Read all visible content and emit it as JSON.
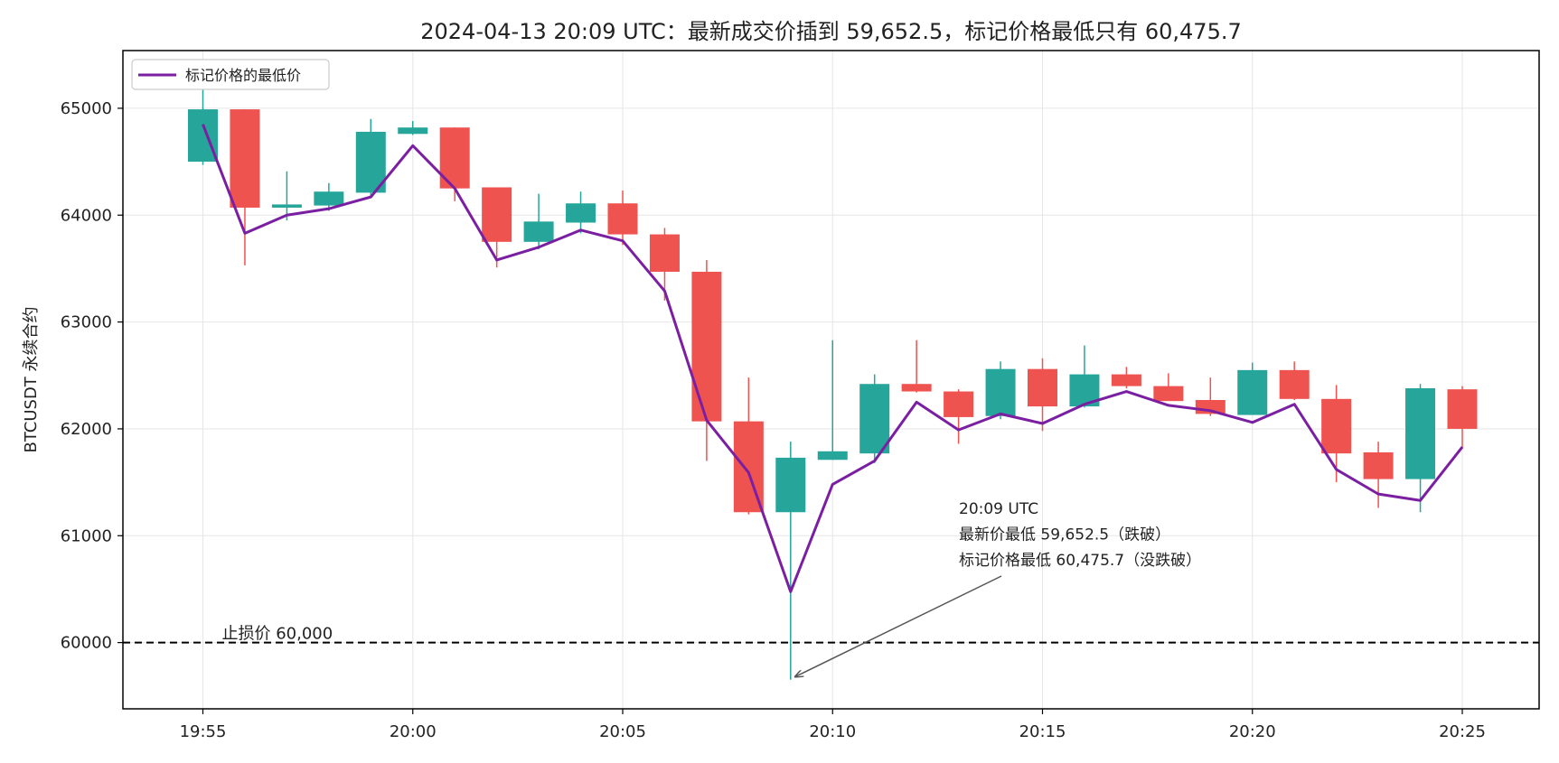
{
  "chart_data": {
    "type": "candlestick",
    "title": "2024-04-13 20:09 UTC：最新成交价插到 59,652.5，标记价格最低只有 60,475.7",
    "xlabel": "",
    "ylabel": "BTCUSDT 永续合约",
    "ylim": [
      59380,
      65540
    ],
    "yticks": [
      60000,
      61000,
      62000,
      63000,
      64000,
      65000
    ],
    "xticks": [
      "19:55",
      "20:00",
      "20:05",
      "20:10",
      "20:15",
      "20:20",
      "20:25"
    ],
    "grid": true,
    "legend": {
      "position": "top-left",
      "entries": [
        "标记价格的最低价"
      ]
    },
    "colors": {
      "up": "#26a69a",
      "down": "#ef5350",
      "mark_line": "#7b1fa2",
      "stop_line": "#000000"
    },
    "times": [
      "19:55",
      "19:56",
      "19:57",
      "19:58",
      "19:59",
      "20:00",
      "20:01",
      "20:02",
      "20:03",
      "20:04",
      "20:05",
      "20:06",
      "20:07",
      "20:08",
      "20:09",
      "20:10",
      "20:11",
      "20:12",
      "20:13",
      "20:14",
      "20:15",
      "20:16",
      "20:17",
      "20:18",
      "20:19",
      "20:20",
      "20:21",
      "20:22",
      "20:23",
      "20:24",
      "20:25"
    ],
    "candles": [
      {
        "open": 64500,
        "high": 65180,
        "low": 64470,
        "close": 64990
      },
      {
        "open": 64990,
        "high": 64990,
        "low": 63530,
        "close": 64070
      },
      {
        "open": 64070,
        "high": 64410,
        "low": 63950,
        "close": 64100
      },
      {
        "open": 64090,
        "high": 64300,
        "low": 64040,
        "close": 64220
      },
      {
        "open": 64210,
        "high": 64900,
        "low": 64180,
        "close": 64780
      },
      {
        "open": 64760,
        "high": 64880,
        "low": 64750,
        "close": 64820
      },
      {
        "open": 64820,
        "high": 64820,
        "low": 64130,
        "close": 64250
      },
      {
        "open": 64260,
        "high": 64260,
        "low": 63510,
        "close": 63750
      },
      {
        "open": 63750,
        "high": 64200,
        "low": 63680,
        "close": 63940
      },
      {
        "open": 63930,
        "high": 64220,
        "low": 63830,
        "close": 64110
      },
      {
        "open": 64110,
        "high": 64230,
        "low": 63720,
        "close": 63820
      },
      {
        "open": 63820,
        "high": 63880,
        "low": 63200,
        "close": 63470
      },
      {
        "open": 63470,
        "high": 63580,
        "low": 61700,
        "close": 62070
      },
      {
        "open": 62070,
        "high": 62480,
        "low": 61200,
        "close": 61220
      },
      {
        "open": 61220,
        "high": 61880,
        "low": 59652.5,
        "close": 61730
      },
      {
        "open": 61710,
        "high": 62830,
        "low": 61710,
        "close": 61790
      },
      {
        "open": 61770,
        "high": 62510,
        "low": 61680,
        "close": 62420
      },
      {
        "open": 62420,
        "high": 62830,
        "low": 62340,
        "close": 62350
      },
      {
        "open": 62350,
        "high": 62370,
        "low": 61860,
        "close": 62110
      },
      {
        "open": 62120,
        "high": 62630,
        "low": 62090,
        "close": 62560
      },
      {
        "open": 62560,
        "high": 62660,
        "low": 61980,
        "close": 62210
      },
      {
        "open": 62210,
        "high": 62780,
        "low": 62200,
        "close": 62510
      },
      {
        "open": 62510,
        "high": 62580,
        "low": 62380,
        "close": 62400
      },
      {
        "open": 62400,
        "high": 62520,
        "low": 62270,
        "close": 62260
      },
      {
        "open": 62270,
        "high": 62480,
        "low": 62120,
        "close": 62140
      },
      {
        "open": 62130,
        "high": 62620,
        "low": 62130,
        "close": 62550
      },
      {
        "open": 62550,
        "high": 62630,
        "low": 62270,
        "close": 62280
      },
      {
        "open": 62280,
        "high": 62410,
        "low": 61500,
        "close": 61770
      },
      {
        "open": 61780,
        "high": 61880,
        "low": 61260,
        "close": 61530
      },
      {
        "open": 61530,
        "high": 62420,
        "low": 61220,
        "close": 62380
      },
      {
        "open": 62370,
        "high": 62400,
        "low": 61820,
        "close": 62000
      }
    ],
    "series": [
      {
        "name": "标记价格的最低价",
        "values": [
          64850,
          63830,
          64000,
          64060,
          64170,
          64650,
          64250,
          63580,
          63700,
          63860,
          63760,
          63290,
          62080,
          61590,
          60475.7,
          61480,
          61700,
          62250,
          61990,
          62140,
          62050,
          62230,
          62350,
          62220,
          62170,
          62060,
          62230,
          61620,
          61390,
          61330,
          61830
        ]
      }
    ],
    "hline": {
      "value": 60000,
      "label": "止损价 60,000"
    },
    "annotation": {
      "lines": [
        "20:09 UTC",
        "最新价最低 59,652.5（跌破）",
        "标记价格最低 60,475.7（没跌破）"
      ],
      "target_time": "20:09",
      "target_value": 59680
    }
  }
}
